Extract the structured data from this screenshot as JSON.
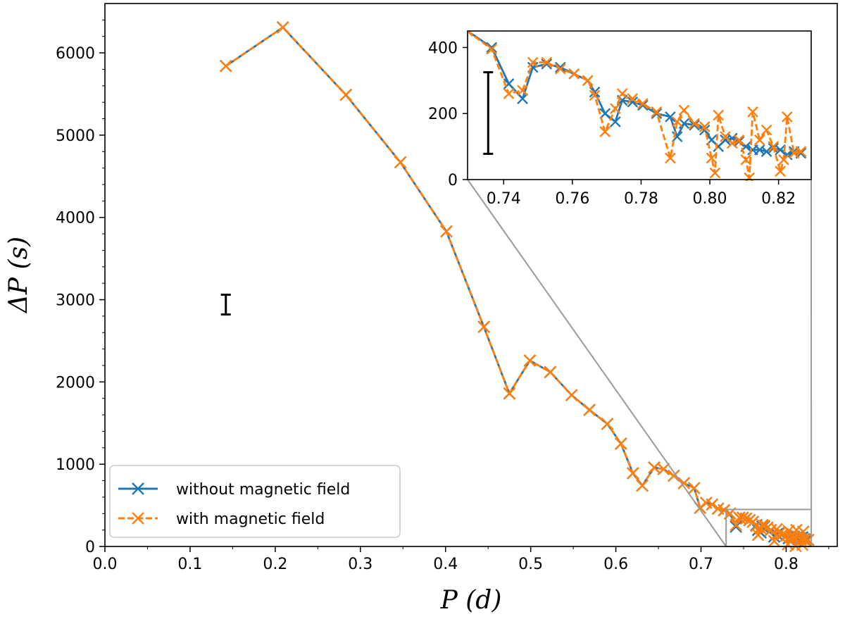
{
  "chart_data": [
    {
      "type": "line",
      "panel": "main",
      "xlabel": "P (d)",
      "ylabel": "ΔP (s)",
      "xlim": [
        0.0,
        0.86
      ],
      "ylim": [
        0,
        6600
      ],
      "xticks": [
        "0.0",
        "0.1",
        "0.2",
        "0.3",
        "0.4",
        "0.5",
        "0.6",
        "0.7",
        "0.8"
      ],
      "yticks": [
        "0",
        "1000",
        "2000",
        "3000",
        "4000",
        "5000",
        "6000"
      ],
      "legend": {
        "position": "lower-left",
        "entries": [
          "without magnetic field",
          "with magnetic field"
        ]
      },
      "error_bar": {
        "x": 0.142,
        "y_low": 2820,
        "y_high": 3060
      },
      "series": [
        {
          "name": "without magnetic field",
          "color": "#1f77b4",
          "style": "solid",
          "x": [
            0.142,
            0.209,
            0.283,
            0.347,
            0.401,
            0.445,
            0.475,
            0.499,
            0.523,
            0.548,
            0.569,
            0.59,
            0.606,
            0.62,
            0.631,
            0.645,
            0.656,
            0.668,
            0.68,
            0.692,
            0.699,
            0.706,
            0.713,
            0.72,
            0.727,
            0.734,
            0.741,
            0.745,
            0.749,
            0.753,
            0.757,
            0.761,
            0.765,
            0.767,
            0.77,
            0.772,
            0.774,
            0.778,
            0.782,
            0.786,
            0.789,
            0.792,
            0.796,
            0.8,
            0.803,
            0.806,
            0.809,
            0.812,
            0.814,
            0.817,
            0.819,
            0.821,
            0.823,
            0.826
          ],
          "y": [
            5840,
            6310,
            5490,
            4670,
            3830,
            2670,
            1860,
            2260,
            2120,
            1840,
            1660,
            1490,
            1250,
            890,
            740,
            960,
            940,
            860,
            770,
            710,
            470,
            530,
            510,
            460,
            440,
            400,
            240,
            350,
            350,
            340,
            320,
            300,
            260,
            200,
            170,
            240,
            240,
            230,
            200,
            120,
            150,
            170,
            150,
            130,
            100,
            130,
            120,
            110,
            90,
            100,
            110,
            90,
            75,
            80
          ],
          "legend_marker": "x"
        },
        {
          "name": "with magnetic field",
          "color": "#ff7f0e",
          "style": "dashed",
          "x": [
            0.142,
            0.209,
            0.283,
            0.347,
            0.401,
            0.445,
            0.475,
            0.499,
            0.523,
            0.548,
            0.569,
            0.59,
            0.606,
            0.62,
            0.631,
            0.645,
            0.656,
            0.668,
            0.68,
            0.692,
            0.699,
            0.706,
            0.713,
            0.72,
            0.727,
            0.734,
            0.741,
            0.745,
            0.749,
            0.753,
            0.757,
            0.761,
            0.765,
            0.767,
            0.77,
            0.772,
            0.774,
            0.778,
            0.782,
            0.786,
            0.789,
            0.792,
            0.796,
            0.8,
            0.802,
            0.803,
            0.806,
            0.809,
            0.811,
            0.812,
            0.814,
            0.817,
            0.819,
            0.82,
            0.821,
            0.823,
            0.826
          ],
          "y": [
            5840,
            6310,
            5490,
            4670,
            3830,
            2670,
            1860,
            2260,
            2120,
            1840,
            1660,
            1490,
            1250,
            890,
            740,
            960,
            940,
            860,
            770,
            710,
            470,
            530,
            510,
            460,
            440,
            400,
            260,
            350,
            350,
            340,
            320,
            300,
            250,
            140,
            220,
            260,
            250,
            230,
            200,
            65,
            210,
            160,
            150,
            130,
            25,
            190,
            120,
            110,
            5,
            200,
            120,
            80,
            20,
            180,
            80,
            90,
            80
          ],
          "legend_marker": "x"
        }
      ]
    },
    {
      "type": "line",
      "panel": "inset",
      "xlim": [
        0.7295,
        0.8295
      ],
      "ylim": [
        0,
        450
      ],
      "xticks": [
        "0.74",
        "0.76",
        "0.78",
        "0.80",
        "0.82"
      ],
      "yticks": [
        "0",
        "200",
        "400"
      ],
      "error_bar": {
        "x": 0.7355,
        "y_low": 78,
        "y_high": 325
      },
      "series": [
        {
          "name": "without magnetic field",
          "color": "#1f77b4",
          "style": "solid",
          "x": [
            0.7295,
            0.7365,
            0.7415,
            0.7455,
            0.7485,
            0.7525,
            0.7565,
            0.7605,
            0.7645,
            0.7665,
            0.7695,
            0.7725,
            0.7745,
            0.7775,
            0.7805,
            0.7845,
            0.7885,
            0.7905,
            0.7925,
            0.7955,
            0.7985,
            0.8005,
            0.8025,
            0.8045,
            0.8065,
            0.8085,
            0.8105,
            0.8125,
            0.8145,
            0.8165,
            0.8185,
            0.8205,
            0.8225,
            0.8245,
            0.8265
          ],
          "y": [
            450,
            400,
            290,
            245,
            340,
            350,
            340,
            320,
            300,
            265,
            200,
            175,
            240,
            235,
            225,
            200,
            190,
            130,
            170,
            165,
            150,
            120,
            100,
            120,
            125,
            115,
            100,
            90,
            90,
            85,
            95,
            90,
            75,
            85,
            80
          ]
        },
        {
          "name": "with magnetic field",
          "color": "#ff7f0e",
          "style": "dashed",
          "x": [
            0.7295,
            0.7365,
            0.7415,
            0.7455,
            0.7485,
            0.7525,
            0.7565,
            0.7605,
            0.7645,
            0.7665,
            0.7695,
            0.7725,
            0.7745,
            0.7775,
            0.7805,
            0.7845,
            0.7885,
            0.7905,
            0.7925,
            0.7955,
            0.7985,
            0.8005,
            0.8015,
            0.8025,
            0.8045,
            0.8065,
            0.8085,
            0.8105,
            0.8115,
            0.8125,
            0.8145,
            0.8165,
            0.8185,
            0.8205,
            0.8215,
            0.8225,
            0.8245,
            0.8265
          ],
          "y": [
            450,
            395,
            260,
            270,
            355,
            355,
            335,
            320,
            300,
            255,
            145,
            215,
            260,
            245,
            230,
            205,
            65,
            175,
            210,
            170,
            160,
            65,
            20,
            195,
            130,
            110,
            120,
            60,
            5,
            205,
            120,
            150,
            100,
            25,
            60,
            190,
            80,
            85
          ]
        }
      ]
    }
  ]
}
